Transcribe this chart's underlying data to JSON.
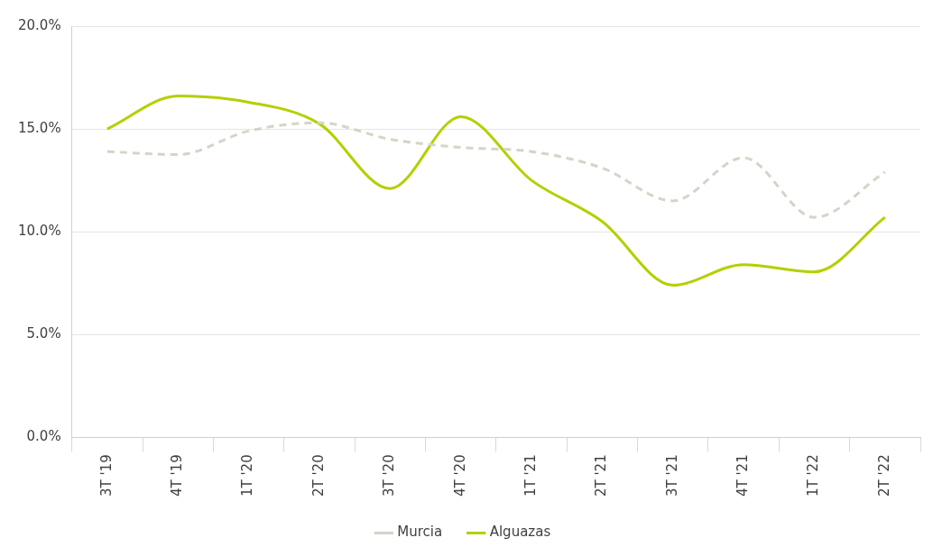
{
  "chart_data": {
    "type": "line",
    "categories": [
      "3T '19",
      "4T '19",
      "1T '20",
      "2T '20",
      "3T '20",
      "4T '20",
      "1T '21",
      "2T '21",
      "3T '21",
      "4T '21",
      "1T '22",
      "2T '22"
    ],
    "series": [
      {
        "name": "Murcia",
        "color": "#d4d4c8",
        "line_style": "dashed",
        "values": [
          13.9,
          13.75,
          14.9,
          15.3,
          14.5,
          14.1,
          13.9,
          13.1,
          11.5,
          13.6,
          10.7,
          12.9
        ]
      },
      {
        "name": "Alguazas",
        "color": "#b5cf00",
        "line_style": "solid",
        "values": [
          15.0,
          16.6,
          16.3,
          15.25,
          12.1,
          15.6,
          12.5,
          10.5,
          7.4,
          8.4,
          8.05,
          10.7
        ]
      }
    ],
    "ylim": [
      0,
      20
    ],
    "yticks": [
      {
        "value": 0,
        "label": "0.0%"
      },
      {
        "value": 5,
        "label": "5.0%"
      },
      {
        "value": 10,
        "label": "10.0%"
      },
      {
        "value": 15,
        "label": "15.0%"
      },
      {
        "value": 20,
        "label": "20.0%"
      }
    ],
    "grid": "y",
    "legend": "bottom",
    "marker": "none"
  }
}
